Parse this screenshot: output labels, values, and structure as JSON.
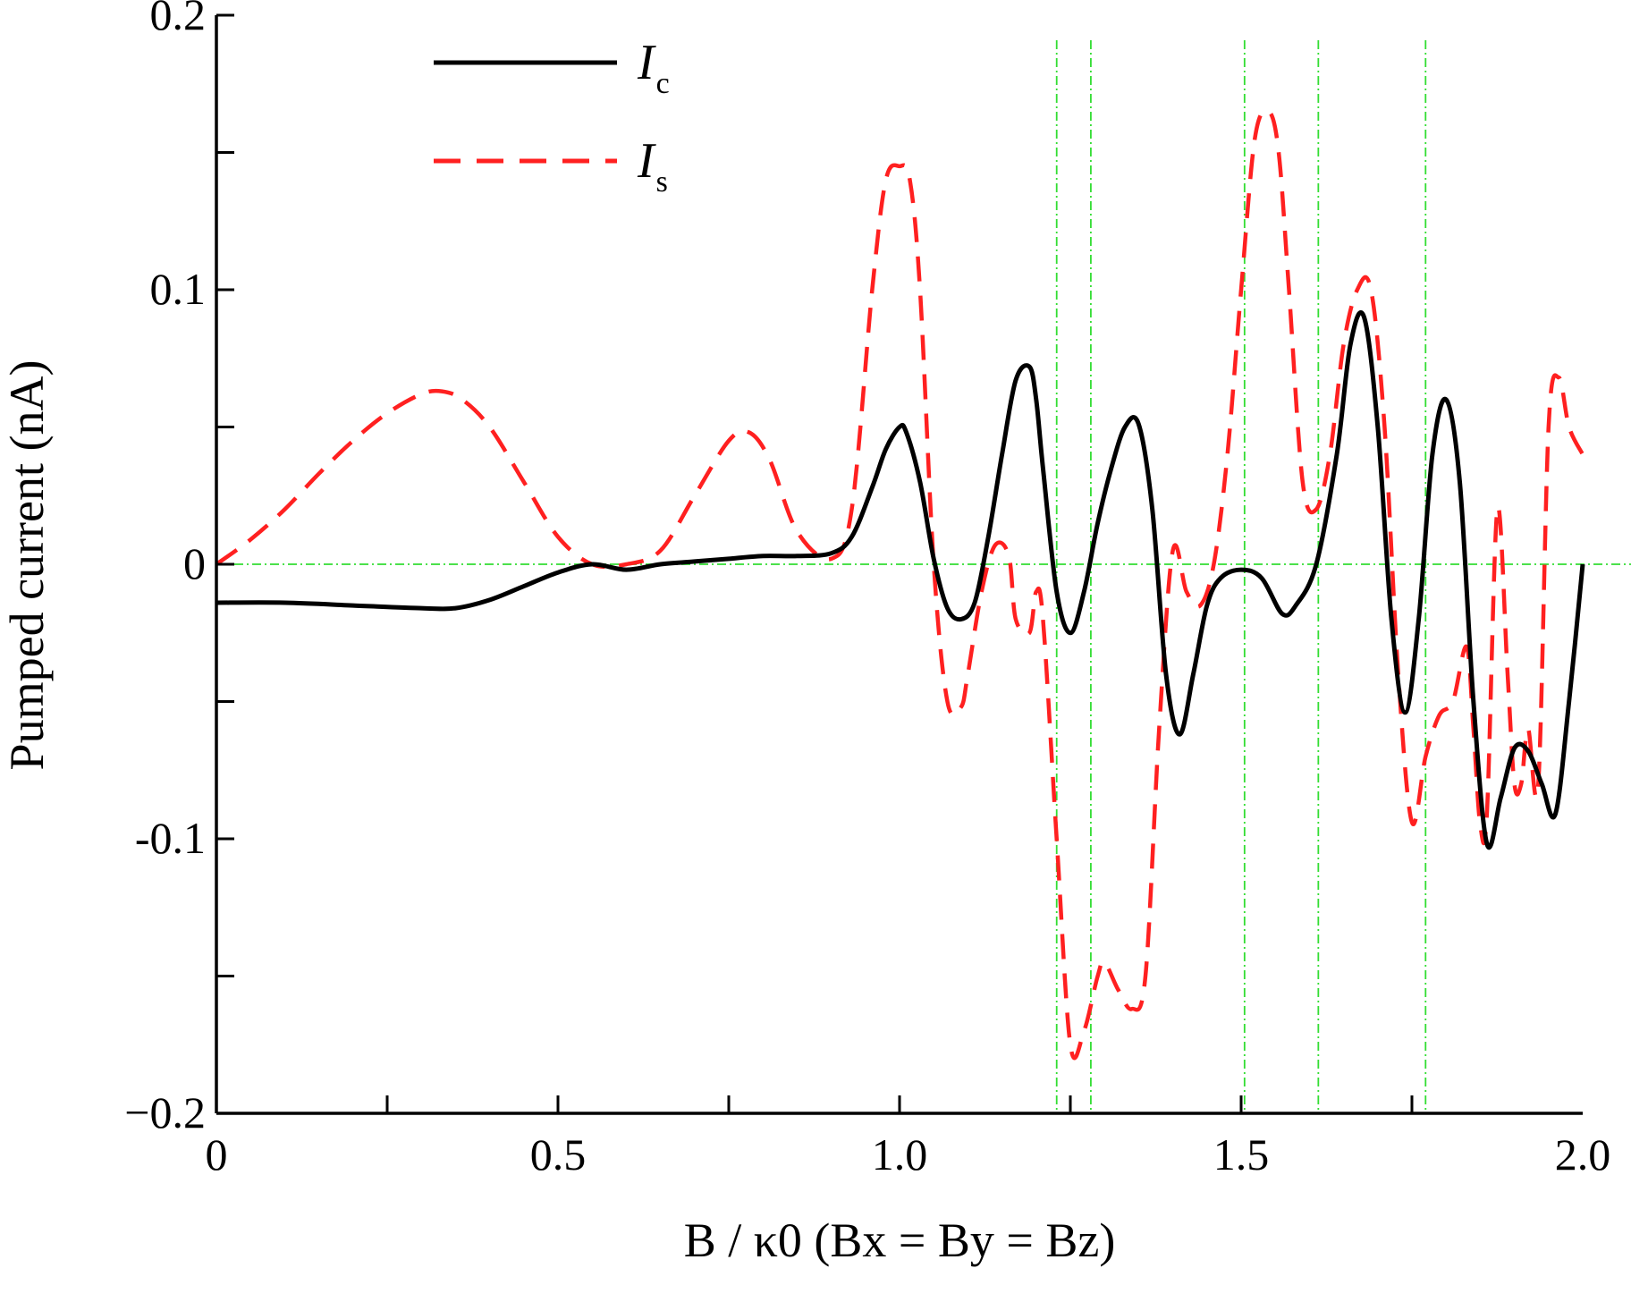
{
  "chart_data": {
    "type": "line",
    "xlabel": "B / κ0 (Bx = By = Bz)",
    "ylabel": "Pumped current (nA)",
    "xlim": [
      0,
      2.0
    ],
    "ylim": [
      -0.2,
      0.2
    ],
    "x_ticks": [
      {
        "value": 0,
        "label": "0"
      },
      {
        "value": 0.5,
        "label": "0.5"
      },
      {
        "value": 1.0,
        "label": "1.0"
      },
      {
        "value": 1.5,
        "label": "1.5"
      },
      {
        "value": 2.0,
        "label": "2.0"
      }
    ],
    "y_ticks": [
      {
        "value": 0.2,
        "label": "0.2"
      },
      {
        "value": 0.1,
        "label": "0.1"
      },
      {
        "value": 0,
        "label": "0"
      },
      {
        "value": -0.1,
        "label": "-0.1"
      },
      {
        "value": -0.2,
        "label": "−0.2"
      }
    ],
    "reference_lines": {
      "horizontal": [
        0
      ],
      "vertical": [
        1.23,
        1.28,
        1.505,
        1.613,
        1.77
      ]
    },
    "legend_placement": "top-left",
    "series": [
      {
        "name": "Ic",
        "name_main": "I",
        "name_sub": "c",
        "style": "solid",
        "color": "#000000",
        "x": [
          0,
          0.1,
          0.2,
          0.3,
          0.35,
          0.4,
          0.45,
          0.5,
          0.55,
          0.6,
          0.65,
          0.7,
          0.75,
          0.8,
          0.85,
          0.9,
          0.93,
          0.96,
          0.98,
          1.0,
          1.01,
          1.03,
          1.05,
          1.07,
          1.09,
          1.11,
          1.13,
          1.15,
          1.17,
          1.19,
          1.2,
          1.21,
          1.23,
          1.25,
          1.27,
          1.29,
          1.31,
          1.33,
          1.35,
          1.37,
          1.39,
          1.41,
          1.43,
          1.45,
          1.47,
          1.5,
          1.53,
          1.56,
          1.58,
          1.61,
          1.64,
          1.66,
          1.68,
          1.7,
          1.72,
          1.74,
          1.76,
          1.78,
          1.8,
          1.82,
          1.84,
          1.86,
          1.88,
          1.9,
          1.92,
          1.94,
          1.96,
          1.98,
          2.0
        ],
        "y": [
          -0.014,
          -0.014,
          -0.015,
          -0.016,
          -0.016,
          -0.013,
          -0.008,
          -0.003,
          0.0,
          -0.002,
          0.0,
          0.001,
          0.002,
          0.003,
          0.003,
          0.004,
          0.01,
          0.028,
          0.042,
          0.05,
          0.048,
          0.03,
          0.002,
          -0.016,
          -0.02,
          -0.014,
          0.01,
          0.04,
          0.067,
          0.072,
          0.06,
          0.035,
          -0.01,
          -0.025,
          -0.01,
          0.015,
          0.035,
          0.05,
          0.051,
          0.02,
          -0.04,
          -0.062,
          -0.04,
          -0.015,
          -0.005,
          -0.002,
          -0.005,
          -0.018,
          -0.015,
          0.0,
          0.04,
          0.08,
          0.09,
          0.05,
          -0.02,
          -0.054,
          -0.02,
          0.04,
          0.06,
          0.03,
          -0.05,
          -0.102,
          -0.085,
          -0.067,
          -0.068,
          -0.08,
          -0.091,
          -0.05,
          0.0
        ]
      },
      {
        "name": "Is",
        "name_main": "I",
        "name_sub": "s",
        "style": "dashed",
        "color": "#ff2020",
        "x": [
          0,
          0.05,
          0.1,
          0.15,
          0.2,
          0.25,
          0.3,
          0.33,
          0.36,
          0.4,
          0.45,
          0.5,
          0.55,
          0.6,
          0.65,
          0.7,
          0.75,
          0.78,
          0.81,
          0.85,
          0.9,
          0.93,
          0.96,
          0.98,
          1.0,
          1.015,
          1.03,
          1.05,
          1.07,
          1.09,
          1.1,
          1.12,
          1.14,
          1.16,
          1.17,
          1.19,
          1.2,
          1.21,
          1.23,
          1.25,
          1.27,
          1.29,
          1.3,
          1.32,
          1.34,
          1.36,
          1.38,
          1.4,
          1.42,
          1.44,
          1.46,
          1.48,
          1.5,
          1.52,
          1.54,
          1.555,
          1.57,
          1.59,
          1.61,
          1.63,
          1.65,
          1.67,
          1.69,
          1.71,
          1.73,
          1.75,
          1.77,
          1.79,
          1.81,
          1.83,
          1.84,
          1.85,
          1.86,
          1.875,
          1.89,
          1.9,
          1.91,
          1.92,
          1.935,
          1.95,
          1.965,
          1.98,
          2.0
        ],
        "y": [
          0.0,
          0.009,
          0.02,
          0.033,
          0.045,
          0.055,
          0.062,
          0.063,
          0.06,
          0.05,
          0.03,
          0.01,
          0.0,
          0.0,
          0.005,
          0.025,
          0.045,
          0.048,
          0.038,
          0.012,
          0.002,
          0.02,
          0.1,
          0.14,
          0.145,
          0.14,
          0.1,
          0.0,
          -0.05,
          -0.052,
          -0.04,
          -0.01,
          0.007,
          0.003,
          -0.02,
          -0.025,
          -0.01,
          -0.02,
          -0.1,
          -0.175,
          -0.17,
          -0.15,
          -0.145,
          -0.155,
          -0.162,
          -0.15,
          -0.06,
          0.005,
          -0.01,
          -0.015,
          0.0,
          0.04,
          0.1,
          0.155,
          0.165,
          0.15,
          0.1,
          0.03,
          0.02,
          0.04,
          0.08,
          0.1,
          0.1,
          0.05,
          -0.04,
          -0.094,
          -0.07,
          -0.055,
          -0.05,
          -0.03,
          -0.06,
          -0.095,
          -0.09,
          0.02,
          -0.04,
          -0.08,
          -0.08,
          -0.06,
          -0.08,
          0.05,
          0.068,
          0.05,
          0.04
        ]
      }
    ]
  }
}
